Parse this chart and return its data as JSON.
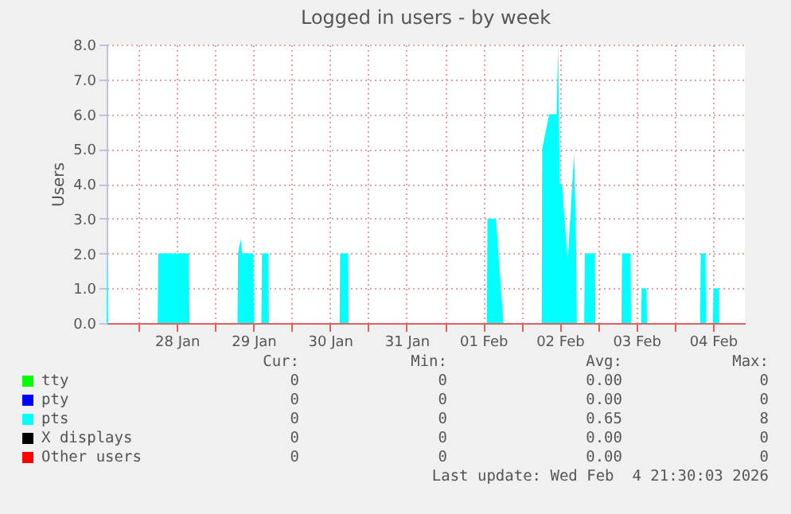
{
  "chart_data": {
    "type": "area",
    "title": "Logged in users - by week",
    "ylabel": "Users",
    "xlim": [
      "2026-01-27T14:00",
      "2026-02-04T22:00"
    ],
    "xticks": [
      {
        "value": "2026-01-28T00:00",
        "label": null
      },
      {
        "value": "2026-01-28T12:00",
        "label": "28 Jan"
      },
      {
        "value": "2026-01-29T00:00",
        "label": null
      },
      {
        "value": "2026-01-29T12:00",
        "label": "29 Jan"
      },
      {
        "value": "2026-01-30T00:00",
        "label": null
      },
      {
        "value": "2026-01-30T12:00",
        "label": "30 Jan"
      },
      {
        "value": "2026-01-31T00:00",
        "label": null
      },
      {
        "value": "2026-01-31T12:00",
        "label": "31 Jan"
      },
      {
        "value": "2026-02-01T00:00",
        "label": null
      },
      {
        "value": "2026-02-01T12:00",
        "label": "01 Feb"
      },
      {
        "value": "2026-02-02T00:00",
        "label": null
      },
      {
        "value": "2026-02-02T12:00",
        "label": "02 Feb"
      },
      {
        "value": "2026-02-03T00:00",
        "label": null
      },
      {
        "value": "2026-02-03T12:00",
        "label": "03 Feb"
      },
      {
        "value": "2026-02-04T00:00",
        "label": null
      },
      {
        "value": "2026-02-04T12:00",
        "label": "04 Feb"
      }
    ],
    "ylim": [
      0,
      8
    ],
    "yticks": [
      {
        "value": 0,
        "label": "0.0"
      },
      {
        "value": 1,
        "label": "1.0"
      },
      {
        "value": 2,
        "label": "2.0"
      },
      {
        "value": 3,
        "label": "3.0"
      },
      {
        "value": 4,
        "label": "4.0"
      },
      {
        "value": 5,
        "label": "5.0"
      },
      {
        "value": 6,
        "label": "6.0"
      },
      {
        "value": 7,
        "label": "7.0"
      },
      {
        "value": 8,
        "label": "8.0"
      }
    ],
    "grid": true,
    "legend": "bottom",
    "series": [
      {
        "name": "tty",
        "color": "#00ff00"
      },
      {
        "name": "pty",
        "color": "#0000ff"
      },
      {
        "name": "pts",
        "color": "#00ffff",
        "x": [
          "2026-01-27T14:00",
          "2026-01-27T14:20",
          "2026-01-28T06:00",
          "2026-01-28T06:10",
          "2026-01-28T15:40",
          "2026-01-28T16:00",
          "2026-01-29T07:00",
          "2026-01-29T07:10",
          "2026-01-29T08:00",
          "2026-01-29T08:30",
          "2026-01-29T12:00",
          "2026-01-29T12:10",
          "2026-01-29T14:30",
          "2026-01-29T14:40",
          "2026-01-29T16:40",
          "2026-01-29T16:50",
          "2026-01-30T15:00",
          "2026-01-30T15:10",
          "2026-01-30T17:40",
          "2026-01-30T17:50",
          "2026-02-01T13:10",
          "2026-02-01T13:20",
          "2026-02-01T16:00",
          "2026-02-01T18:20",
          "2026-02-02T06:20",
          "2026-02-02T06:30",
          "2026-02-02T08:40",
          "2026-02-02T11:00",
          "2026-02-02T11:30",
          "2026-02-02T12:00",
          "2026-02-02T12:40",
          "2026-02-02T14:30",
          "2026-02-02T16:30",
          "2026-02-02T17:10",
          "2026-02-02T17:20",
          "2026-02-02T19:40",
          "2026-02-02T19:50",
          "2026-02-02T23:00",
          "2026-02-02T23:10",
          "2026-02-03T07:20",
          "2026-02-03T07:30",
          "2026-02-03T10:10",
          "2026-02-03T10:20",
          "2026-02-03T13:30",
          "2026-02-03T13:40",
          "2026-02-03T15:10",
          "2026-02-03T15:20",
          "2026-02-04T08:00",
          "2026-02-04T08:10",
          "2026-02-04T09:40",
          "2026-02-04T09:50",
          "2026-02-04T12:00",
          "2026-02-04T12:10",
          "2026-02-04T13:50",
          "2026-02-04T14:00",
          "2026-02-04T22:00"
        ],
        "values": [
          2,
          0,
          0,
          2,
          2,
          0,
          0,
          2,
          2.4,
          2,
          2,
          0,
          0,
          2,
          2,
          0,
          0,
          2,
          2,
          0,
          0,
          3,
          3,
          0,
          0,
          5,
          6,
          6,
          8,
          4,
          4,
          1.8,
          4.9,
          2,
          0,
          0,
          2,
          2,
          0,
          0,
          2,
          2,
          0,
          0,
          1,
          1,
          0,
          0,
          2,
          2,
          0,
          0,
          1,
          1,
          0,
          0
        ]
      },
      {
        "name": "X displays",
        "color": "#000000"
      },
      {
        "name": "Other users",
        "color": "#ff0000"
      }
    ],
    "annotations": [
      "Cur:",
      "Min:",
      "Avg:",
      "Max:",
      "0",
      "0",
      "0.00",
      "0",
      "0",
      "0",
      "0.00",
      "0",
      "0",
      "0",
      "0.65",
      "8",
      "0",
      "0",
      "0.00",
      "0",
      "0",
      "0",
      "0.00",
      "0",
      "Last update: Wed Feb  4 21:30:03 2026"
    ]
  }
}
